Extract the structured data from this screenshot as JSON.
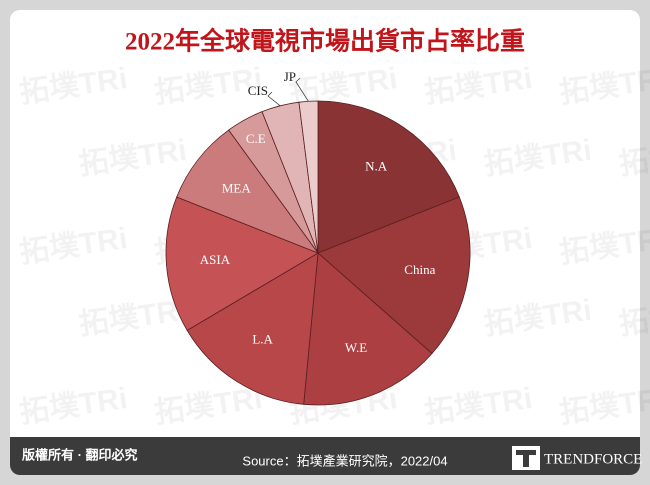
{
  "chart_data": {
    "type": "pie",
    "title": "2022年全球電視市場出貨市占率比重",
    "categories": [
      "N.A",
      "China",
      "W.E",
      "L.A",
      "ASIA",
      "MEA",
      "C.E",
      "CIS",
      "JP"
    ],
    "values": [
      19,
      17.5,
      15,
      15,
      14.5,
      9,
      4,
      4,
      2
    ],
    "colors": [
      "#8a3335",
      "#9b393b",
      "#ab3f42",
      "#b8474a",
      "#c55356",
      "#cb7b7b",
      "#d69a9a",
      "#e1b5b5",
      "#ebcbcb"
    ]
  },
  "footer": {
    "copyright": "版權所有 · 翻印必究",
    "source": "Source：拓墣產業研究院，2022/04",
    "brand": "TRENDFORCE"
  },
  "watermark": "拓墣TRi"
}
